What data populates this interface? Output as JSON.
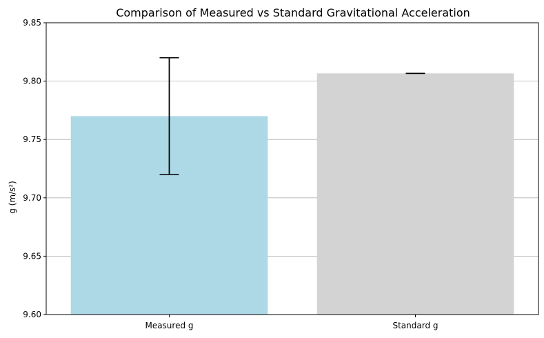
{
  "chart_data": {
    "type": "bar",
    "title": "Comparison of Measured vs Standard Gravitational Acceleration",
    "xlabel": "",
    "ylabel": "g (m/s²)",
    "categories": [
      "Measured g",
      "Standard g"
    ],
    "values": [
      9.77,
      9.80665
    ],
    "errors": [
      0.05,
      0.0
    ],
    "colors": [
      "#add8e6",
      "#d3d3d3"
    ],
    "ylim": [
      9.6,
      9.85
    ],
    "yticks": [
      "9.60",
      "9.65",
      "9.70",
      "9.75",
      "9.80",
      "9.85"
    ],
    "grid": "y",
    "legend": "none"
  }
}
